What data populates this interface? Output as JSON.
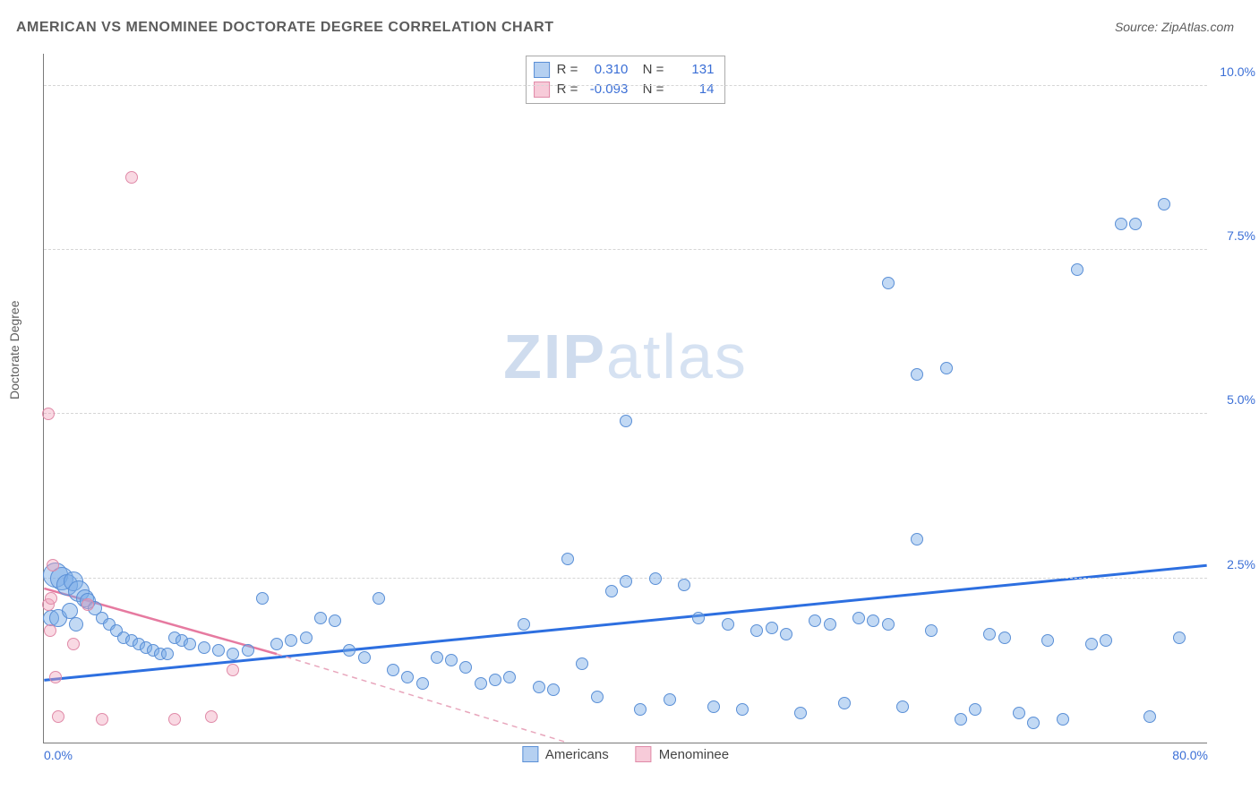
{
  "title": "AMERICAN VS MENOMINEE DOCTORATE DEGREE CORRELATION CHART",
  "source": "Source: ZipAtlas.com",
  "yaxis_label": "Doctorate Degree",
  "watermark_bold": "ZIP",
  "watermark_rest": "atlas",
  "chart": {
    "type": "scatter",
    "xlim": [
      0,
      80
    ],
    "ylim": [
      0,
      10.5
    ],
    "x_ticks": [
      {
        "v": 0,
        "label": "0.0%"
      },
      {
        "v": 80,
        "label": "80.0%"
      }
    ],
    "y_ticks": [
      {
        "v": 2.5,
        "label": "2.5%"
      },
      {
        "v": 5.0,
        "label": "5.0%"
      },
      {
        "v": 7.5,
        "label": "7.5%"
      },
      {
        "v": 10.0,
        "label": "10.0%"
      }
    ],
    "grid_color": "#d6d6d6",
    "axis_text_color": "#3b6fd6",
    "background_color": "#ffffff",
    "series": [
      {
        "name": "Americans",
        "color_fill": "rgba(120,170,230,0.45)",
        "color_stroke": "#5a8fd6",
        "trend": {
          "x1": 0,
          "y1": 0.95,
          "x2": 80,
          "y2": 2.7,
          "stroke": "#2d6fe0",
          "width": 3,
          "dash": "none"
        },
        "trend_tail": null,
        "r_value": "0.310",
        "n_value": "131",
        "points": [
          [
            0.8,
            2.55,
            28
          ],
          [
            1.2,
            2.5,
            26
          ],
          [
            1.6,
            2.4,
            24
          ],
          [
            2.0,
            2.45,
            22
          ],
          [
            2.4,
            2.3,
            24
          ],
          [
            2.8,
            2.2,
            20
          ],
          [
            0.5,
            1.9,
            18
          ],
          [
            1.0,
            1.9,
            20
          ],
          [
            1.8,
            2.0,
            18
          ],
          [
            2.2,
            1.8,
            16
          ],
          [
            3.0,
            2.15,
            18
          ],
          [
            3.5,
            2.05,
            16
          ],
          [
            4.0,
            1.9,
            14
          ],
          [
            4.5,
            1.8,
            14
          ],
          [
            5.0,
            1.7,
            14
          ],
          [
            5.5,
            1.6,
            14
          ],
          [
            6.0,
            1.55,
            14
          ],
          [
            6.5,
            1.5,
            14
          ],
          [
            7.0,
            1.45,
            14
          ],
          [
            7.5,
            1.4,
            14
          ],
          [
            8.0,
            1.35,
            14
          ],
          [
            8.5,
            1.35,
            14
          ],
          [
            9.0,
            1.6,
            14
          ],
          [
            9.5,
            1.55,
            14
          ],
          [
            10,
            1.5,
            14
          ],
          [
            11,
            1.45,
            14
          ],
          [
            12,
            1.4,
            14
          ],
          [
            13,
            1.35,
            14
          ],
          [
            14,
            1.4,
            14
          ],
          [
            15,
            2.2,
            14
          ],
          [
            16,
            1.5,
            14
          ],
          [
            17,
            1.55,
            14
          ],
          [
            18,
            1.6,
            14
          ],
          [
            19,
            1.9,
            14
          ],
          [
            20,
            1.85,
            14
          ],
          [
            21,
            1.4,
            14
          ],
          [
            22,
            1.3,
            14
          ],
          [
            23,
            2.2,
            14
          ],
          [
            24,
            1.1,
            14
          ],
          [
            25,
            1.0,
            14
          ],
          [
            26,
            0.9,
            14
          ],
          [
            27,
            1.3,
            14
          ],
          [
            28,
            1.25,
            14
          ],
          [
            29,
            1.15,
            14
          ],
          [
            30,
            0.9,
            14
          ],
          [
            31,
            0.95,
            14
          ],
          [
            32,
            1.0,
            14
          ],
          [
            33,
            1.8,
            14
          ],
          [
            34,
            0.85,
            14
          ],
          [
            35,
            0.8,
            14
          ],
          [
            36,
            2.8,
            14
          ],
          [
            37,
            1.2,
            14
          ],
          [
            38,
            0.7,
            14
          ],
          [
            39,
            2.3,
            14
          ],
          [
            40,
            2.45,
            14
          ],
          [
            40,
            4.9,
            14
          ],
          [
            41,
            0.5,
            14
          ],
          [
            42,
            2.5,
            14
          ],
          [
            43,
            0.65,
            14
          ],
          [
            44,
            2.4,
            14
          ],
          [
            45,
            1.9,
            14
          ],
          [
            46,
            0.55,
            14
          ],
          [
            47,
            1.8,
            14
          ],
          [
            48,
            0.5,
            14
          ],
          [
            49,
            1.7,
            14
          ],
          [
            50,
            1.75,
            14
          ],
          [
            51,
            1.65,
            14
          ],
          [
            52,
            0.45,
            14
          ],
          [
            53,
            1.85,
            14
          ],
          [
            54,
            1.8,
            14
          ],
          [
            55,
            0.6,
            14
          ],
          [
            56,
            1.9,
            14
          ],
          [
            57,
            1.85,
            14
          ],
          [
            58,
            1.8,
            14
          ],
          [
            58,
            7.0,
            14
          ],
          [
            59,
            0.55,
            14
          ],
          [
            60,
            3.1,
            14
          ],
          [
            60,
            5.6,
            14
          ],
          [
            61,
            1.7,
            14
          ],
          [
            62,
            5.7,
            14
          ],
          [
            63,
            0.35,
            14
          ],
          [
            64,
            0.5,
            14
          ],
          [
            65,
            1.65,
            14
          ],
          [
            66,
            1.6,
            14
          ],
          [
            67,
            0.45,
            14
          ],
          [
            68,
            0.3,
            14
          ],
          [
            69,
            1.55,
            14
          ],
          [
            70,
            0.35,
            14
          ],
          [
            71,
            7.2,
            14
          ],
          [
            72,
            1.5,
            14
          ],
          [
            73,
            1.55,
            14
          ],
          [
            74,
            7.9,
            14
          ],
          [
            75,
            7.9,
            14
          ],
          [
            76,
            0.4,
            14
          ],
          [
            77,
            8.2,
            14
          ],
          [
            78,
            1.6,
            14
          ]
        ]
      },
      {
        "name": "Menominee",
        "color_fill": "rgba(240,160,185,0.40)",
        "color_stroke": "#e08aa8",
        "trend": {
          "x1": 0,
          "y1": 2.35,
          "x2": 16,
          "y2": 1.35,
          "stroke": "#e67aa0",
          "width": 2.5,
          "dash": "none"
        },
        "trend_tail": {
          "x1": 16,
          "y1": 1.35,
          "x2": 36,
          "y2": 0.0,
          "stroke": "#e8a6bc",
          "width": 1.5,
          "dash": "6,5"
        },
        "r_value": "-0.093",
        "n_value": "14",
        "points": [
          [
            0.3,
            2.1,
            14
          ],
          [
            0.4,
            1.7,
            14
          ],
          [
            0.5,
            2.2,
            14
          ],
          [
            0.6,
            2.7,
            14
          ],
          [
            0.8,
            1.0,
            14
          ],
          [
            1.0,
            0.4,
            14
          ],
          [
            2.0,
            1.5,
            14
          ],
          [
            3.0,
            2.1,
            14
          ],
          [
            4.0,
            0.35,
            14
          ],
          [
            6.0,
            8.6,
            14
          ],
          [
            0.3,
            5.0,
            14
          ],
          [
            9.0,
            0.35,
            14
          ],
          [
            11.5,
            0.4,
            14
          ],
          [
            13.0,
            1.1,
            14
          ]
        ]
      }
    ],
    "legend_bottom": [
      {
        "swatch": "blue",
        "label": "Americans"
      },
      {
        "swatch": "pink",
        "label": "Menominee"
      }
    ]
  }
}
